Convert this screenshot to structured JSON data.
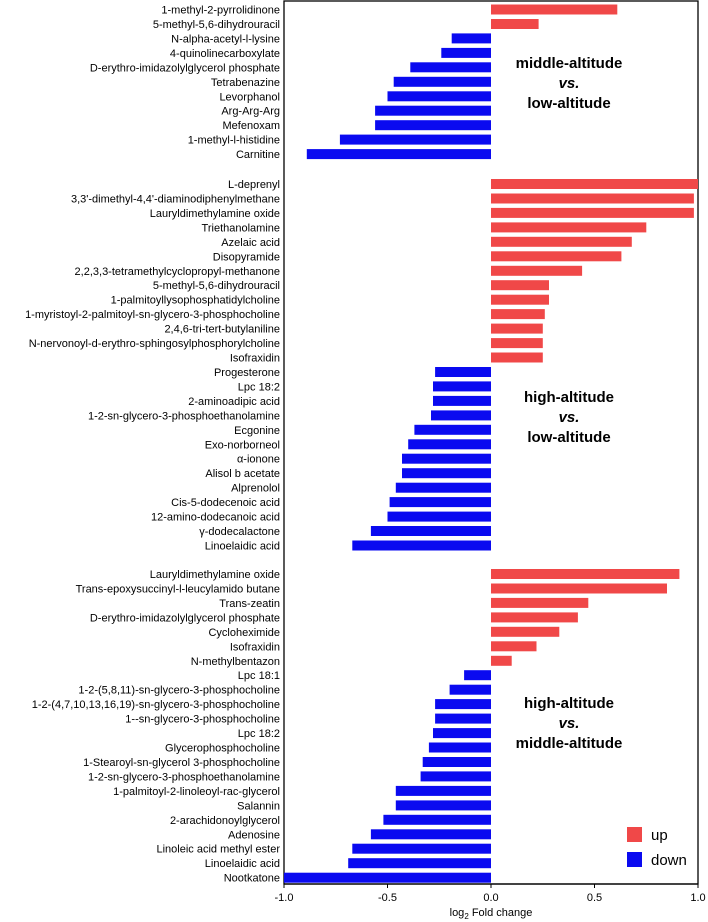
{
  "chart_data": {
    "type": "bar",
    "orientation": "horizontal",
    "xlabel": "log2 Fold change",
    "xlabel_parts": {
      "prefix": "log",
      "sub": "2",
      "suffix": " Fold change"
    },
    "xlim": [
      -1.0,
      1.0
    ],
    "xticks": [
      "-1.0",
      "-0.5",
      "0.0",
      "0.5",
      "1.0"
    ],
    "xtick_values": [
      -1.0,
      -0.5,
      0.0,
      0.5,
      1.0
    ],
    "legend": {
      "position": "bottom-right",
      "entries": [
        {
          "label": "up",
          "color": "#f04848"
        },
        {
          "label": "down",
          "color": "#0a0af0"
        }
      ]
    },
    "colors": {
      "up": "#f04848",
      "down": "#0a0af0"
    },
    "groups": [
      {
        "annotation": {
          "line1": "middle-altitude",
          "vs": "vs.",
          "line2": "low-altitude"
        },
        "categories": [
          "1-methyl-2-pyrrolidinone",
          "5-methyl-5,6-dihydrouracil",
          "N-alpha-acetyl-l-lysine",
          "4-quinolinecarboxylate",
          "D-erythro-imidazolylglycerol phosphate",
          "Tetrabenazine",
          "Levorphanol",
          "Arg-Arg-Arg",
          "Mefenoxam",
          "1-methyl-l-histidine",
          "Carnitine"
        ],
        "values": [
          0.61,
          0.23,
          -0.19,
          -0.24,
          -0.39,
          -0.47,
          -0.5,
          -0.56,
          -0.56,
          -0.73,
          -0.89
        ]
      },
      {
        "annotation": {
          "line1": "high-altitude",
          "vs": "vs.",
          "line2": "low-altitude"
        },
        "categories": [
          "L-deprenyl",
          "3,3'-dimethyl-4,4'-diaminodiphenylmethane",
          "Lauryldimethylamine oxide",
          "Triethanolamine",
          "Azelaic acid",
          "Disopyramide",
          "2,2,3,3-tetramethylcyclopropyl-methanone",
          "5-methyl-5,6-dihydrouracil",
          "1-palmitoyllysophosphatidylcholine",
          "1-myristoyl-2-palmitoyl-sn-glycero-3-phosphocholine",
          "2,4,6-tri-tert-butylaniline",
          "N-nervonoyl-d-erythro-sphingosylphosphorylcholine",
          "Isofraxidin",
          "Progesterone",
          "Lpc 18:2",
          "2-aminoadipic acid",
          "1-2-sn-glycero-3-phosphoethanolamine",
          "Ecgonine",
          "Exo-norborneol",
          "α-ionone",
          "Alisol b acetate",
          "Alprenolol",
          "Cis-5-dodecenoic acid",
          "12-amino-dodecanoic acid",
          "γ-dodecalactone",
          "Linoelaidic acid"
        ],
        "values": [
          1.0,
          0.98,
          0.98,
          0.75,
          0.68,
          0.63,
          0.44,
          0.28,
          0.28,
          0.26,
          0.25,
          0.25,
          0.25,
          -0.27,
          -0.28,
          -0.28,
          -0.29,
          -0.37,
          -0.4,
          -0.43,
          -0.43,
          -0.46,
          -0.49,
          -0.5,
          -0.58,
          -0.67
        ]
      },
      {
        "annotation": {
          "line1": "high-altitude",
          "vs": "vs.",
          "line2": "middle-altitude"
        },
        "categories": [
          "Lauryldimethylamine oxide",
          "Trans-epoxysuccinyl-l-leucylamido butane",
          "Trans-zeatin",
          "D-erythro-imidazolylglycerol phosphate",
          "Cycloheximide",
          "Isofraxidin",
          "N-methylbentazon",
          "Lpc 18:1",
          "1-2-(5,8,11)-sn-glycero-3-phosphocholine",
          "1-2-(4,7,10,13,16,19)-sn-glycero-3-phosphocholine",
          "1--sn-glycero-3-phosphocholine",
          "Lpc 18:2",
          "Glycerophosphocholine",
          "1-Stearoyl-sn-glycerol 3-phosphocholine",
          "1-2-sn-glycero-3-phosphoethanolamine",
          "1-palmitoyl-2-linoleoyl-rac-glycerol",
          "Salannin",
          "2-arachidonoylglycerol",
          "Adenosine",
          "Linoleic acid methyl ester",
          "Linoelaidic acid",
          "Nootkatone"
        ],
        "values": [
          0.91,
          0.85,
          0.47,
          0.42,
          0.33,
          0.22,
          0.1,
          -0.13,
          -0.2,
          -0.27,
          -0.27,
          -0.28,
          -0.3,
          -0.33,
          -0.34,
          -0.46,
          -0.46,
          -0.52,
          -0.58,
          -0.67,
          -0.69,
          -1.0
        ]
      }
    ]
  }
}
